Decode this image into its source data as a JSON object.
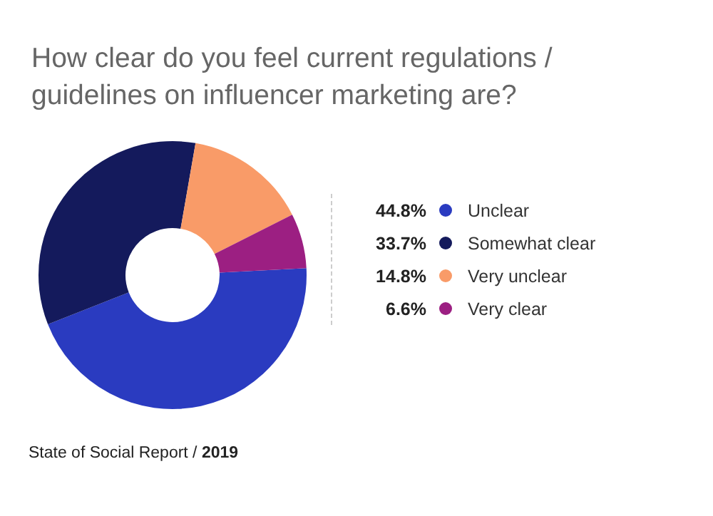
{
  "chart_data": {
    "type": "donut",
    "title": "How clear do you feel current regulations / guidelines on influencer marketing are?",
    "categories": [
      "Unclear",
      "Somewhat clear",
      "Very unclear",
      "Very clear"
    ],
    "values": [
      44.8,
      33.7,
      14.8,
      6.6
    ],
    "value_labels": [
      "44.8%",
      "33.7%",
      "14.8%",
      "6.6%"
    ],
    "colors": [
      "#2a3bc0",
      "#141a5c",
      "#f99b68",
      "#9c1f82"
    ],
    "legend": "right",
    "annotations": [
      "State of Social Report / 2019"
    ]
  }
}
